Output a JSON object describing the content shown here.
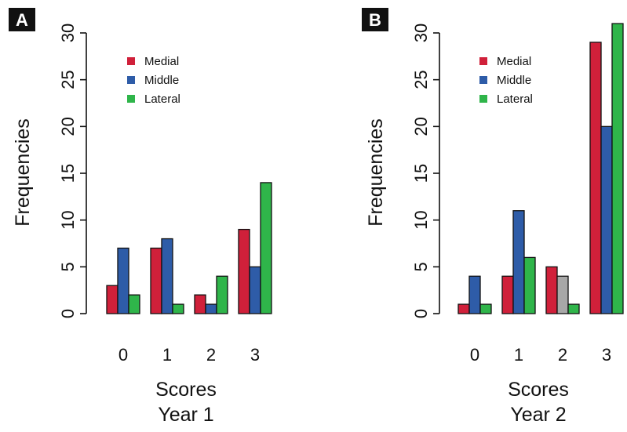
{
  "chart_data": [
    {
      "type": "bar",
      "panel_label": "A",
      "categories": [
        "0",
        "1",
        "2",
        "3"
      ],
      "series": [
        {
          "name": "Medial",
          "color": "#d0203a",
          "values": [
            3,
            7,
            2,
            9
          ]
        },
        {
          "name": "Middle",
          "color": "#2e5ca8",
          "values": [
            7,
            8,
            1,
            5
          ]
        },
        {
          "name": "Lateral",
          "color": "#2fb54a",
          "values": [
            2,
            1,
            4,
            14
          ]
        }
      ],
      "ylabel": "Frequencies",
      "xlabel": [
        "Scores",
        "Year 1"
      ],
      "ylim": [
        0,
        30
      ],
      "yticks": [
        "0",
        "5",
        "10",
        "15",
        "20",
        "25",
        "30"
      ],
      "legend": "top-left",
      "grid": false
    },
    {
      "type": "bar",
      "panel_label": "B",
      "categories": [
        "0",
        "1",
        "2",
        "3"
      ],
      "series": [
        {
          "name": "Medial",
          "color": "#d0203a",
          "values": [
            1,
            4,
            5,
            29
          ]
        },
        {
          "name": "Middle",
          "color": "#2e5ca8",
          "values": [
            4,
            11,
            4,
            20
          ],
          "highlight_color": "#a8a8a8",
          "highlight_index": 2
        },
        {
          "name": "Lateral",
          "color": "#2fb54a",
          "values": [
            1,
            6,
            1,
            31
          ]
        }
      ],
      "ylabel": "Frequencies",
      "xlabel": [
        "Scores",
        "Year 2"
      ],
      "ylim": [
        0,
        30
      ],
      "yticks": [
        "0",
        "5",
        "10",
        "15",
        "20",
        "25",
        "30"
      ],
      "legend": "top-left",
      "grid": false
    }
  ]
}
